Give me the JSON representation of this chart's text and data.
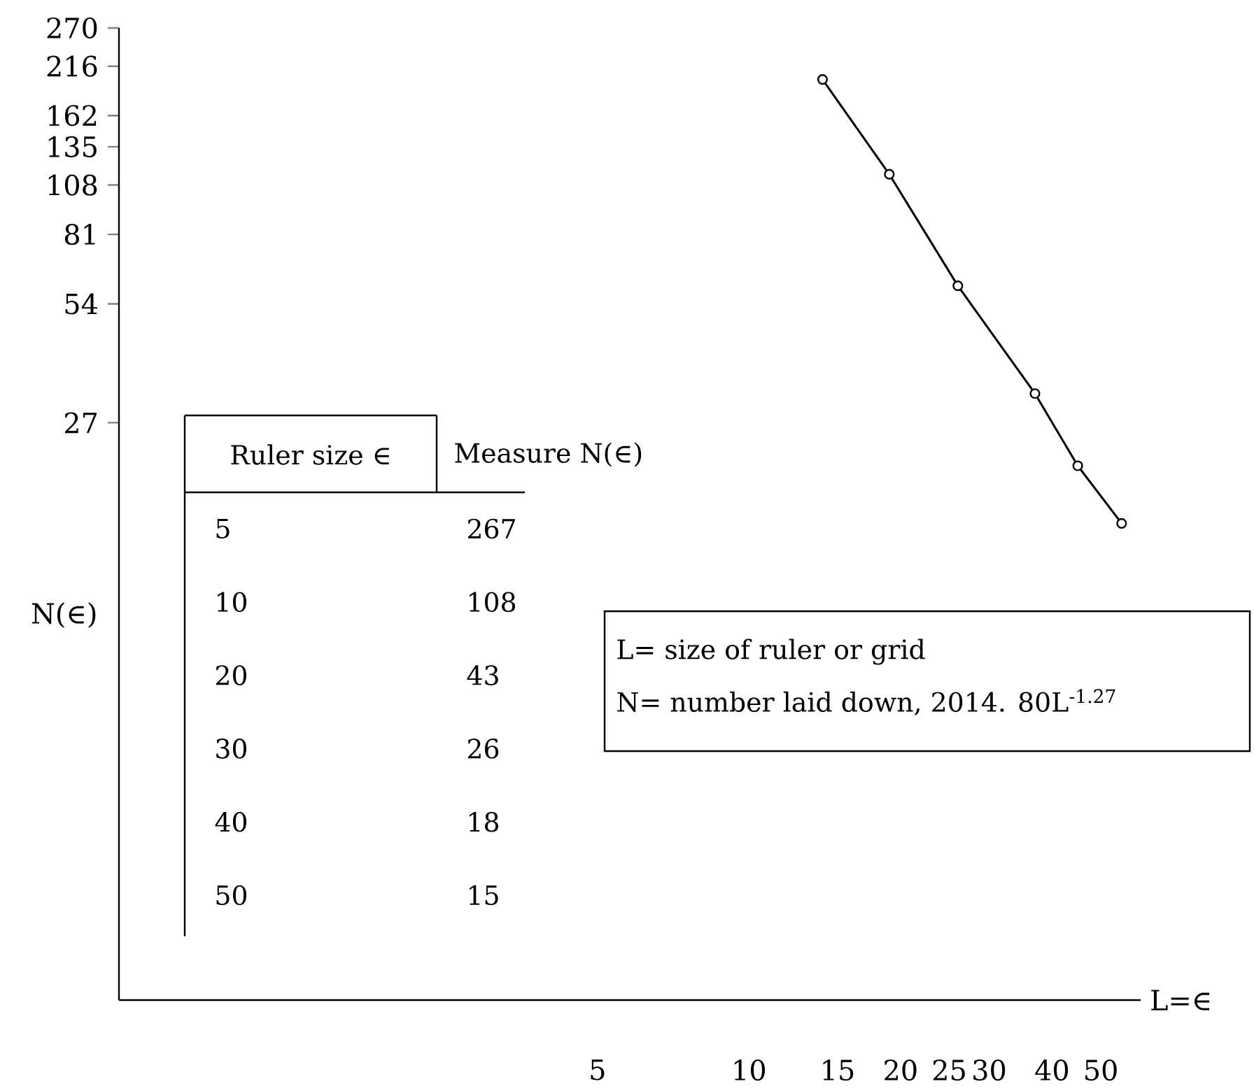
{
  "chart_data": {
    "type": "line",
    "xlabel": "L=∈",
    "ylabel": "N(∈)",
    "log": "xy",
    "xlim": [
      0.56,
      60
    ],
    "ylim": [
      0.93,
      270
    ],
    "xticks": [
      5,
      10,
      15,
      20,
      25,
      30,
      40,
      50
    ],
    "yticks": [
      27,
      54,
      81,
      108,
      135,
      162,
      216,
      270
    ],
    "x": [
      14,
      19,
      26,
      37,
      45,
      55
    ],
    "values": [
      200,
      115,
      60,
      32,
      21,
      15
    ],
    "color": "#000000",
    "marker": "circle",
    "line_style": "solid",
    "grid": false,
    "annotations": [
      "Ruler size ∈",
      "Measure N(∈)",
      "5",
      "267",
      "10",
      "108",
      "20",
      "43",
      "30",
      "26",
      "40",
      "18",
      "50",
      "15",
      "L= size of ruler or grid",
      "N= number laid down, 2014. 80L$^{-1.27}$"
    ]
  }
}
